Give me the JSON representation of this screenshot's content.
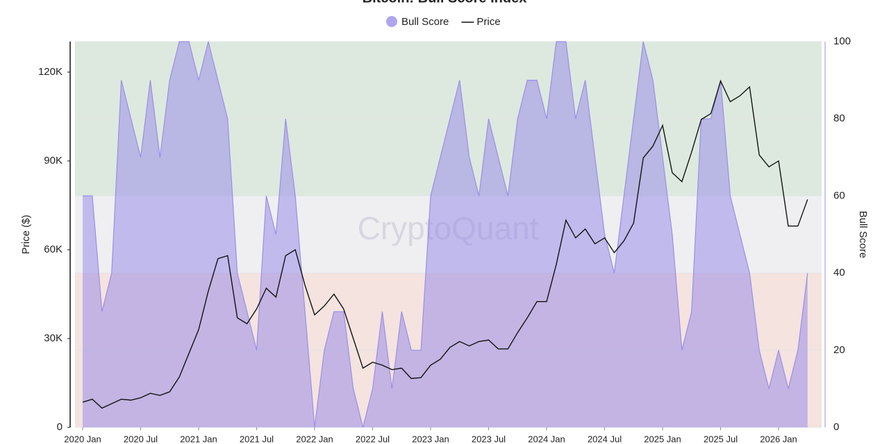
{
  "chart_data": {
    "type": "line",
    "title": "Bitcoin: Bull Score Index",
    "watermark": "CryptoQuant",
    "ylabel": "Price ($)",
    "y2label": "Bull Score",
    "x": [
      "2020-01",
      "2020-02",
      "2020-03",
      "2020-04",
      "2020-05",
      "2020-06",
      "2020-07",
      "2020-08",
      "2020-09",
      "2020-10",
      "2020-11",
      "2020-12",
      "2021-01",
      "2021-02",
      "2021-03",
      "2021-04",
      "2021-05",
      "2021-06",
      "2021-07",
      "2021-08",
      "2021-09",
      "2021-10",
      "2021-11",
      "2021-12",
      "2022-01",
      "2022-02",
      "2022-03",
      "2022-04",
      "2022-05",
      "2022-06",
      "2022-07",
      "2022-08",
      "2022-09",
      "2022-10",
      "2022-11",
      "2022-12",
      "2023-01",
      "2023-02",
      "2023-03",
      "2023-04",
      "2023-05",
      "2023-06",
      "2023-07",
      "2023-08",
      "2023-09",
      "2023-10",
      "2023-11",
      "2023-12",
      "2024-01",
      "2024-02",
      "2024-03",
      "2024-04",
      "2024-05",
      "2024-06",
      "2024-07",
      "2024-08",
      "2024-09",
      "2024-10",
      "2024-11",
      "2024-12",
      "2025-01",
      "2025-02",
      "2025-03",
      "2025-04",
      "2025-05",
      "2025-06",
      "2025-07",
      "2025-08",
      "2025-09",
      "2025-10",
      "2025-11",
      "2025-12",
      "2026-01",
      "2026-02",
      "2026-03",
      "2026-04"
    ],
    "xticks": [
      {
        "value": "2020-01",
        "label": "2020 Jan"
      },
      {
        "value": "2020-07",
        "label": "2020 Jul"
      },
      {
        "value": "2021-01",
        "label": "2021 Jan"
      },
      {
        "value": "2021-07",
        "label": "2021 Jul"
      },
      {
        "value": "2022-01",
        "label": "2022 Jan"
      },
      {
        "value": "2022-07",
        "label": "2022 Jul"
      },
      {
        "value": "2023-01",
        "label": "2023 Jan"
      },
      {
        "value": "2023-07",
        "label": "2023 Jul"
      },
      {
        "value": "2024-01",
        "label": "2024 Jan"
      },
      {
        "value": "2024-07",
        "label": "2024 Jul"
      },
      {
        "value": "2025-01",
        "label": "2025 Jan"
      },
      {
        "value": "2025-07",
        "label": "2025 Jul"
      },
      {
        "value": "2026-01",
        "label": "2026 Jan"
      }
    ],
    "ylim": [
      0,
      130300
    ],
    "yticks": [
      0,
      {
        "value": 30000,
        "label": "30K"
      },
      {
        "value": 60000,
        "label": "60K"
      },
      {
        "value": 90000,
        "label": "90K"
      },
      {
        "value": 120000,
        "label": "120K"
      }
    ],
    "y2lim": [
      0,
      100
    ],
    "y2ticks": [
      0,
      20,
      40,
      60,
      80,
      100
    ],
    "grid": true,
    "bands": [
      {
        "from": 0,
        "to": 40,
        "color": "#f4e3de"
      },
      {
        "from": 40,
        "to": 60,
        "color": "#efeff1"
      },
      {
        "from": 60,
        "to": 100,
        "color": "#dde9de"
      }
    ],
    "series": [
      {
        "name": "Bull Score",
        "kind": "area",
        "axis": "y2",
        "color": "#9b8ee8",
        "values": [
          60,
          60,
          30,
          40,
          90,
          80,
          70,
          90,
          70,
          90,
          100,
          100,
          90,
          100,
          90,
          80,
          40,
          30,
          20,
          60,
          50,
          80,
          60,
          30,
          0,
          20,
          30,
          30,
          10,
          0,
          10,
          30,
          10,
          30,
          20,
          20,
          60,
          70,
          80,
          90,
          70,
          60,
          80,
          70,
          60,
          80,
          90,
          90,
          80,
          100,
          100,
          80,
          90,
          70,
          50,
          40,
          60,
          80,
          100,
          90,
          70,
          50,
          20,
          30,
          80,
          80,
          90,
          60,
          50,
          40,
          20,
          10,
          20,
          10,
          20,
          40
        ]
      },
      {
        "name": "Price",
        "kind": "line",
        "axis": "y",
        "color": "#111111",
        "values": [
          8500,
          9500,
          6500,
          8000,
          9500,
          9200,
          10000,
          11500,
          10800,
          12000,
          17000,
          25000,
          33000,
          46000,
          57000,
          58000,
          37000,
          35000,
          40000,
          47000,
          44000,
          58000,
          60000,
          48000,
          38000,
          41000,
          45000,
          40000,
          30000,
          20000,
          22000,
          21000,
          19500,
          20000,
          16500,
          16800,
          21000,
          23000,
          27000,
          29000,
          27500,
          29000,
          29500,
          26500,
          26500,
          32000,
          37000,
          42500,
          42500,
          55000,
          70000,
          64000,
          67000,
          62000,
          64000,
          59000,
          63000,
          69000,
          91000,
          95000,
          102000,
          86000,
          83000,
          93000,
          104000,
          106000,
          117000,
          110000,
          112000,
          115000,
          92000,
          88000,
          90000,
          68000,
          68000,
          77000
        ]
      }
    ]
  }
}
